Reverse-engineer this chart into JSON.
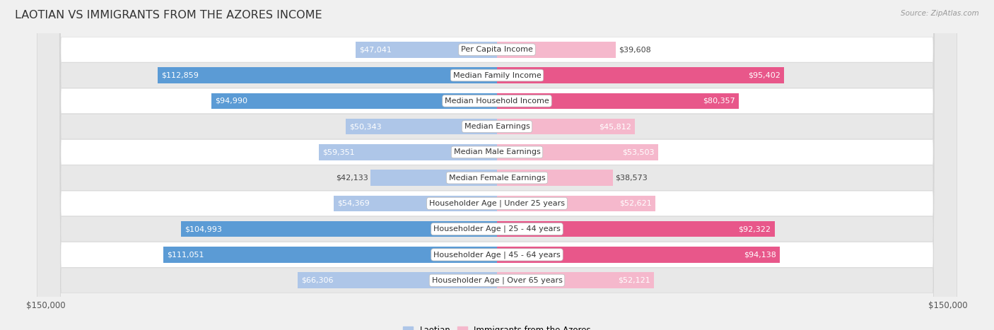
{
  "title": "LAOTIAN VS IMMIGRANTS FROM THE AZORES INCOME",
  "source": "Source: ZipAtlas.com",
  "categories": [
    "Per Capita Income",
    "Median Family Income",
    "Median Household Income",
    "Median Earnings",
    "Median Male Earnings",
    "Median Female Earnings",
    "Householder Age | Under 25 years",
    "Householder Age | 25 - 44 years",
    "Householder Age | 45 - 64 years",
    "Householder Age | Over 65 years"
  ],
  "laotian_values": [
    47041,
    112859,
    94990,
    50343,
    59351,
    42133,
    54369,
    104993,
    111051,
    66306
  ],
  "azores_values": [
    39608,
    95402,
    80357,
    45812,
    53503,
    38573,
    52621,
    92322,
    94138,
    52121
  ],
  "laotian_labels": [
    "$47,041",
    "$112,859",
    "$94,990",
    "$50,343",
    "$59,351",
    "$42,133",
    "$54,369",
    "$104,993",
    "$111,051",
    "$66,306"
  ],
  "azores_labels": [
    "$39,608",
    "$95,402",
    "$80,357",
    "$45,812",
    "$53,503",
    "$38,573",
    "$52,621",
    "$92,322",
    "$94,138",
    "$52,121"
  ],
  "laotian_color_light": "#aec6e8",
  "laotian_color_dark": "#5b9bd5",
  "azores_color_light": "#f5b8cc",
  "azores_color_dark": "#e8578a",
  "laotian_threshold": 75000,
  "azores_threshold": 75000,
  "max_value": 150000,
  "background_color": "#f0f0f0",
  "row_bg_odd": "#ffffff",
  "row_bg_even": "#e8e8e8",
  "label_fontsize": 8.0,
  "cat_fontsize": 8.0,
  "title_fontsize": 11.5,
  "axis_label_fontsize": 8.5
}
